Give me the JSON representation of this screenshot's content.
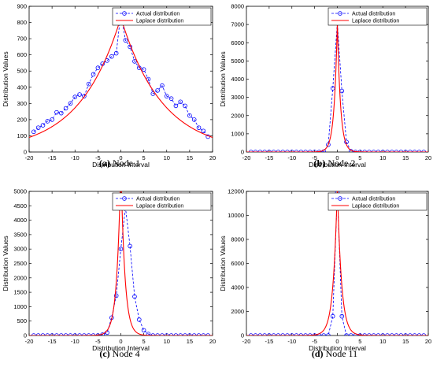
{
  "chart_data": [
    {
      "type": "line",
      "caption_tag": "(a)",
      "caption_text": "Node 1",
      "xlabel": "Distribution Interval",
      "ylabel": "Distribution Values",
      "xlim": [
        -20,
        20
      ],
      "ylim": [
        0,
        900
      ],
      "xticks": [
        -20,
        -15,
        -10,
        -5,
        0,
        5,
        10,
        15,
        20
      ],
      "yticks": [
        0,
        100,
        200,
        300,
        400,
        500,
        600,
        700,
        800,
        900
      ],
      "legend_position": "top-right",
      "grid": false,
      "series": [
        {
          "name": "Actual distribution",
          "style": "dashed-circle",
          "color": "#0000ff",
          "x": [
            -19,
            -18,
            -17,
            -16,
            -15,
            -14,
            -13,
            -12,
            -11,
            -10,
            -9,
            -8,
            -7,
            -6,
            -5,
            -4,
            -3,
            -2,
            -1,
            0,
            1,
            2,
            3,
            4,
            5,
            6,
            7,
            8,
            9,
            10,
            11,
            12,
            13,
            14,
            15,
            16,
            17,
            18,
            19
          ],
          "y": [
            125,
            150,
            165,
            190,
            200,
            245,
            240,
            270,
            300,
            340,
            355,
            345,
            420,
            480,
            520,
            545,
            565,
            590,
            610,
            860,
            690,
            650,
            560,
            520,
            510,
            450,
            360,
            380,
            410,
            345,
            330,
            285,
            310,
            285,
            225,
            200,
            150,
            130,
            95
          ]
        },
        {
          "name": "Laplace distribution",
          "style": "solid",
          "color": "#ff0000",
          "kind": "laplace",
          "peak": 830,
          "scale": 9.0
        }
      ]
    },
    {
      "type": "line",
      "caption_tag": "(b)",
      "caption_text": "Node 2",
      "xlabel": "Distribution Interval",
      "ylabel": "Distribution Values",
      "xlim": [
        -20,
        20
      ],
      "ylim": [
        0,
        8000
      ],
      "xticks": [
        -20,
        -15,
        -10,
        -5,
        0,
        5,
        10,
        15,
        20
      ],
      "yticks": [
        0,
        1000,
        2000,
        3000,
        4000,
        5000,
        6000,
        7000,
        8000
      ],
      "legend_position": "top-right",
      "grid": false,
      "series": [
        {
          "name": "Actual distribution",
          "style": "dashed-circle",
          "color": "#0000ff",
          "x": [
            -19,
            -18,
            -17,
            -16,
            -15,
            -14,
            -13,
            -12,
            -11,
            -10,
            -9,
            -8,
            -7,
            -6,
            -5,
            -4,
            -3,
            -2,
            -1,
            0,
            1,
            2,
            3,
            4,
            5,
            6,
            7,
            8,
            9,
            10,
            11,
            12,
            13,
            14,
            15,
            16,
            17,
            18,
            19
          ],
          "y": [
            0,
            0,
            0,
            0,
            0,
            0,
            0,
            0,
            0,
            0,
            0,
            0,
            0,
            0,
            0,
            0,
            20,
            400,
            3500,
            7100,
            3350,
            550,
            40,
            0,
            0,
            0,
            0,
            0,
            0,
            0,
            0,
            0,
            0,
            0,
            0,
            0,
            0,
            0,
            0
          ]
        },
        {
          "name": "Laplace distribution",
          "style": "solid",
          "color": "#ff0000",
          "kind": "laplace",
          "peak": 7100,
          "scale": 0.7
        }
      ]
    },
    {
      "type": "line",
      "caption_tag": "(c)",
      "caption_text": "Node 4",
      "xlabel": "Distribution Interval",
      "ylabel": "Distribution Values",
      "xlim": [
        -20,
        20
      ],
      "ylim": [
        0,
        5000
      ],
      "xticks": [
        -20,
        -15,
        -10,
        -5,
        0,
        5,
        10,
        15,
        20
      ],
      "yticks": [
        0,
        500,
        1000,
        1500,
        2000,
        2500,
        3000,
        3500,
        4000,
        4500,
        5000
      ],
      "legend_position": "top-right",
      "grid": false,
      "series": [
        {
          "name": "Actual distribution",
          "style": "dashed-circle",
          "color": "#0000ff",
          "x": [
            -19,
            -18,
            -17,
            -16,
            -15,
            -14,
            -13,
            -12,
            -11,
            -10,
            -9,
            -8,
            -7,
            -6,
            -5,
            -4,
            -3,
            -2,
            -1,
            0,
            1,
            2,
            3,
            4,
            5,
            6,
            7,
            8,
            9,
            10,
            11,
            12,
            13,
            14,
            15,
            16,
            17,
            18,
            19
          ],
          "y": [
            0,
            0,
            0,
            0,
            0,
            0,
            0,
            0,
            0,
            0,
            0,
            0,
            0,
            0,
            0,
            30,
            100,
            620,
            1380,
            3000,
            4450,
            3100,
            1350,
            550,
            180,
            50,
            0,
            0,
            0,
            0,
            0,
            0,
            0,
            0,
            0,
            0,
            0,
            0,
            0
          ]
        },
        {
          "name": "Laplace distribution",
          "style": "solid",
          "color": "#ff0000",
          "kind": "laplace",
          "peak": 6000,
          "scale": 0.85
        }
      ]
    },
    {
      "type": "line",
      "caption_tag": "(d)",
      "caption_text": "Node 11",
      "xlabel": "Distribution Interval",
      "ylabel": "Distribution Values",
      "xlim": [
        -20,
        20
      ],
      "ylim": [
        0,
        12000
      ],
      "xticks": [
        -20,
        -15,
        -10,
        -5,
        0,
        5,
        10,
        15,
        20
      ],
      "yticks": [
        0,
        2000,
        4000,
        6000,
        8000,
        10000,
        12000
      ],
      "legend_position": "top-right",
      "grid": false,
      "series": [
        {
          "name": "Actual distribution",
          "style": "dashed-circle",
          "color": "#0000ff",
          "x": [
            -19,
            -18,
            -17,
            -16,
            -15,
            -14,
            -13,
            -12,
            -11,
            -10,
            -9,
            -8,
            -7,
            -6,
            -5,
            -4,
            -3,
            -2,
            -1,
            0,
            1,
            2,
            3,
            4,
            5,
            6,
            7,
            8,
            9,
            10,
            11,
            12,
            13,
            14,
            15,
            16,
            17,
            18,
            19
          ],
          "y": [
            0,
            0,
            0,
            0,
            0,
            0,
            0,
            0,
            0,
            0,
            0,
            0,
            0,
            0,
            0,
            0,
            0,
            0,
            1600,
            11900,
            1600,
            0,
            0,
            0,
            0,
            0,
            0,
            0,
            0,
            0,
            0,
            0,
            0,
            0,
            0,
            0,
            0,
            0,
            0
          ]
        },
        {
          "name": "Laplace distribution",
          "style": "solid",
          "color": "#ff0000",
          "kind": "laplace",
          "peak": 12500,
          "scale": 0.9
        }
      ]
    }
  ]
}
